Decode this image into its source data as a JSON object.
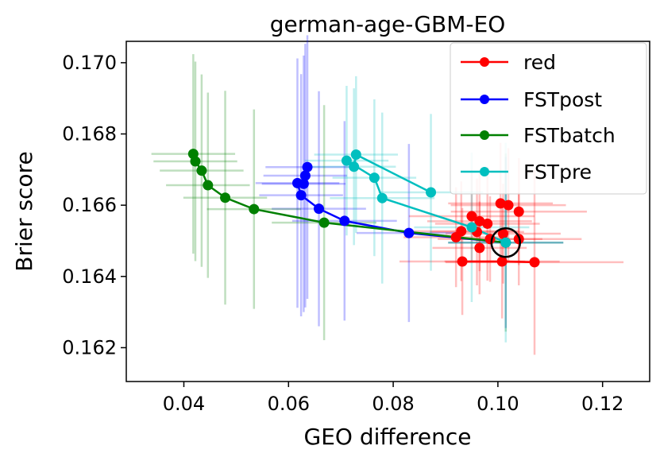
{
  "chart_data": {
    "type": "scatter",
    "title": "german-age-GBM-EO",
    "xlabel": "GEO difference",
    "ylabel": "Brier score",
    "xlim": [
      0.029,
      0.129
    ],
    "ylim": [
      0.16105,
      0.1706
    ],
    "xticks": [
      0.04,
      0.06,
      0.08,
      0.1,
      0.12
    ],
    "xtick_labels": [
      "0.04",
      "0.06",
      "0.08",
      "0.10",
      "0.12"
    ],
    "yticks": [
      0.162,
      0.164,
      0.166,
      0.168,
      0.17
    ],
    "ytick_labels": [
      "0.162",
      "0.164",
      "0.166",
      "0.168",
      "0.170"
    ],
    "legend_position": "top-right",
    "reference_point": {
      "x": 0.1015,
      "y": 0.16495
    },
    "series": [
      {
        "name": "red",
        "color": "#ff0000",
        "connected_line": {
          "x": [
            0.0932,
            0.1008,
            0.107
          ],
          "y": [
            0.16442,
            0.16442,
            0.1644
          ]
        },
        "points": [
          {
            "x": 0.0932,
            "y": 0.16442,
            "xerr": 0.012,
            "yerr": 0.0015
          },
          {
            "x": 0.1008,
            "y": 0.16442,
            "xerr": 0.011,
            "yerr": 0.0016
          },
          {
            "x": 0.107,
            "y": 0.1644,
            "xerr": 0.017,
            "yerr": 0.0026
          },
          {
            "x": 0.093,
            "y": 0.16527,
            "xerr": 0.011,
            "yerr": 0.0014
          },
          {
            "x": 0.095,
            "y": 0.16569,
            "xerr": 0.012,
            "yerr": 0.0013
          },
          {
            "x": 0.0965,
            "y": 0.16555,
            "xerr": 0.01,
            "yerr": 0.0014
          },
          {
            "x": 0.1005,
            "y": 0.16605,
            "xerr": 0.01,
            "yerr": 0.0017
          },
          {
            "x": 0.102,
            "y": 0.166,
            "xerr": 0.011,
            "yerr": 0.0016
          },
          {
            "x": 0.104,
            "y": 0.16582,
            "xerr": 0.013,
            "yerr": 0.0015
          },
          {
            "x": 0.0965,
            "y": 0.1648,
            "xerr": 0.009,
            "yerr": 0.0013
          },
          {
            "x": 0.0985,
            "y": 0.16505,
            "xerr": 0.01,
            "yerr": 0.0012
          },
          {
            "x": 0.101,
            "y": 0.1652,
            "xerr": 0.011,
            "yerr": 0.0014
          },
          {
            "x": 0.104,
            "y": 0.16505,
            "xerr": 0.012,
            "yerr": 0.0013
          },
          {
            "x": 0.096,
            "y": 0.16525,
            "xerr": 0.009,
            "yerr": 0.0015
          },
          {
            "x": 0.098,
            "y": 0.16548,
            "xerr": 0.01,
            "yerr": 0.0016
          },
          {
            "x": 0.092,
            "y": 0.1651,
            "xerr": 0.01,
            "yerr": 0.0014
          }
        ]
      },
      {
        "name": "FSTpost",
        "color": "#0000ff",
        "x": [
          0.0636,
          0.0632,
          0.0629,
          0.0617,
          0.0624,
          0.0658,
          0.0707,
          0.083,
          0.1015
        ],
        "y": [
          0.16707,
          0.16683,
          0.1666,
          0.16662,
          0.16628,
          0.1659,
          0.16556,
          0.16522,
          0.16495
        ],
        "xerr": [
          0.008,
          0.008,
          0.008,
          0.008,
          0.008,
          0.009,
          0.01,
          0.01,
          0.011
        ],
        "yerr": [
          0.0037,
          0.0037,
          0.0036,
          0.0035,
          0.0034,
          0.0033,
          0.0028,
          0.0025,
          0.0024
        ]
      },
      {
        "name": "FSTbatch",
        "color": "#008000",
        "x": [
          0.0418,
          0.0422,
          0.0434,
          0.0446,
          0.0479,
          0.0534,
          0.0668,
          0.1015
        ],
        "y": [
          0.16744,
          0.16723,
          0.16697,
          0.16656,
          0.16621,
          0.16589,
          0.16551,
          0.16495
        ],
        "xerr": [
          0.008,
          0.008,
          0.008,
          0.008,
          0.008,
          0.009,
          0.01,
          0.011
        ],
        "yerr": [
          0.0028,
          0.0028,
          0.0027,
          0.0026,
          0.003,
          0.0028,
          0.0033,
          0.0025
        ]
      },
      {
        "name": "FSTpre",
        "color": "#00bfbf",
        "x": [
          0.0872,
          0.0729,
          0.0725,
          0.0711,
          0.0764,
          0.0779,
          0.095,
          0.1015
        ],
        "y": [
          0.16636,
          0.16742,
          0.16708,
          0.16725,
          0.16677,
          0.1662,
          0.16538,
          0.16495
        ],
        "xerr": [
          0.01,
          0.008,
          0.008,
          0.008,
          0.008,
          0.01,
          0.011,
          0.011
        ],
        "yerr": [
          0.0022,
          0.0022,
          0.0022,
          0.0021,
          0.0022,
          0.0024,
          0.0021,
          0.0028
        ]
      }
    ]
  }
}
